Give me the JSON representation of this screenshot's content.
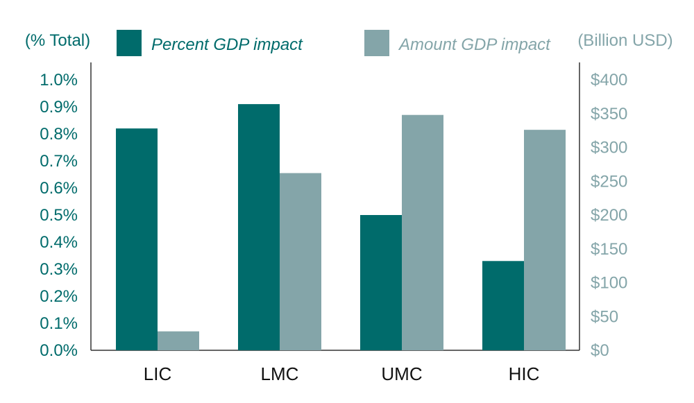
{
  "chart_data": {
    "type": "bar",
    "categories": [
      "LIC",
      "LMC",
      "UMC",
      "HIC"
    ],
    "series": [
      {
        "name": "Percent GDP impact",
        "axis": "left",
        "values": [
          0.82,
          0.91,
          0.5,
          0.33
        ],
        "color": "#006b6b"
      },
      {
        "name": "Amount GDP impact",
        "axis": "right",
        "values": [
          28,
          262,
          348,
          326
        ],
        "color": "#84a5a9"
      }
    ],
    "y_left": {
      "label": "(% Total)",
      "range": [
        0,
        1.0
      ],
      "ticks": [
        "0.0%",
        "0.1%",
        "0.2%",
        "0.3%",
        "0.4%",
        "0.5%",
        "0.6%",
        "0.7%",
        "0.8%",
        "0.9%",
        "1.0%"
      ],
      "color": "#006b6b"
    },
    "y_right": {
      "label": "(Billion USD)",
      "range": [
        0,
        400
      ],
      "ticks": [
        "$0",
        "$50",
        "$100",
        "$150",
        "$200",
        "$250",
        "$300",
        "$350",
        "$400"
      ],
      "color": "#84a5a9"
    },
    "grid": false,
    "legend_position": "top"
  }
}
